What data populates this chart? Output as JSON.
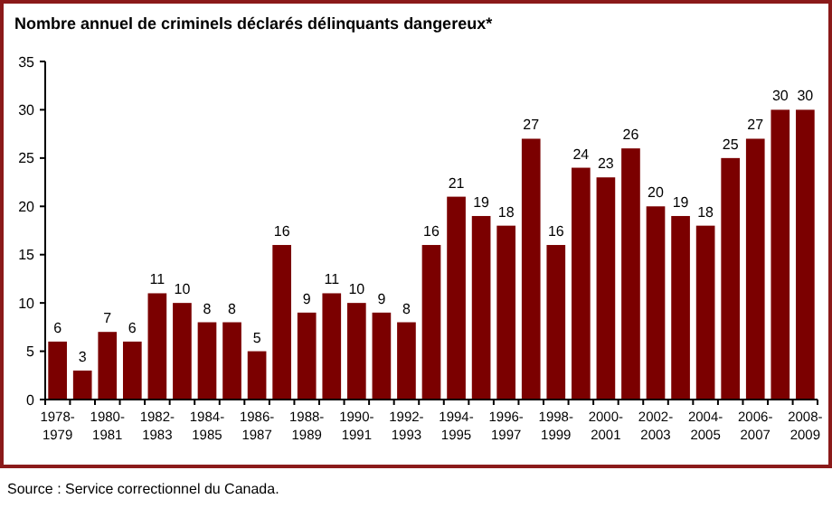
{
  "chart_data": {
    "type": "bar",
    "title": "Nombre annuel de criminels déclarés délinquants dangereux*",
    "categories": [
      "1978-1979",
      null,
      "1980-1981",
      null,
      "1982-1983",
      null,
      "1984-1985",
      null,
      "1986-1987",
      null,
      "1988-1989",
      null,
      "1990-1991",
      null,
      "1992-1993",
      null,
      "1994-1995",
      null,
      "1996-1997",
      null,
      "1998-1999",
      null,
      "2000-2001",
      null,
      "2002-2003",
      null,
      "2004-2005",
      null,
      "2006-2007",
      null,
      "2008-2009"
    ],
    "values": [
      6,
      3,
      7,
      6,
      11,
      10,
      8,
      8,
      5,
      16,
      9,
      11,
      10,
      9,
      8,
      16,
      21,
      19,
      18,
      27,
      16,
      24,
      23,
      26,
      20,
      19,
      18,
      25,
      27,
      30,
      30
    ],
    "color": "#7b0000",
    "ylim": [
      0,
      35
    ],
    "yticks": [
      0,
      5,
      10,
      15,
      20,
      25,
      30,
      35
    ],
    "grid": false,
    "data_labels": true,
    "annotations": [
      "Source : Service correctionnel du Canada."
    ]
  }
}
